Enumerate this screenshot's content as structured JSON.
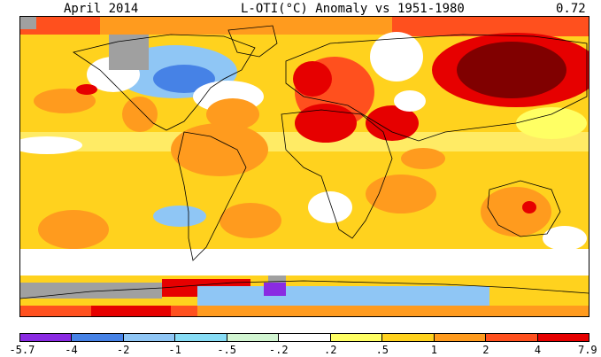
{
  "header": {
    "date": "April 2014",
    "title": "L-OTI(°C) Anomaly vs 1951-1980",
    "global_mean": "0.72"
  },
  "legend": {
    "labels": [
      "-5.7",
      "-4",
      "-2",
      "-1",
      "-.5",
      "-.2",
      ".2",
      ".5",
      "1",
      "2",
      "4",
      "7.9"
    ],
    "colors": [
      "#8a2be2",
      "#4682e6",
      "#8fc6f5",
      "#87dcf5",
      "#d2f5d2",
      "#ffffff",
      "#ffff64",
      "#ffd21e",
      "#ff9b1e",
      "#ff501e",
      "#e60000",
      "#800000"
    ]
  },
  "map": {
    "projection": "equirectangular",
    "missing_data_color": "#a0a0a0",
    "continent_outlines": true
  }
}
